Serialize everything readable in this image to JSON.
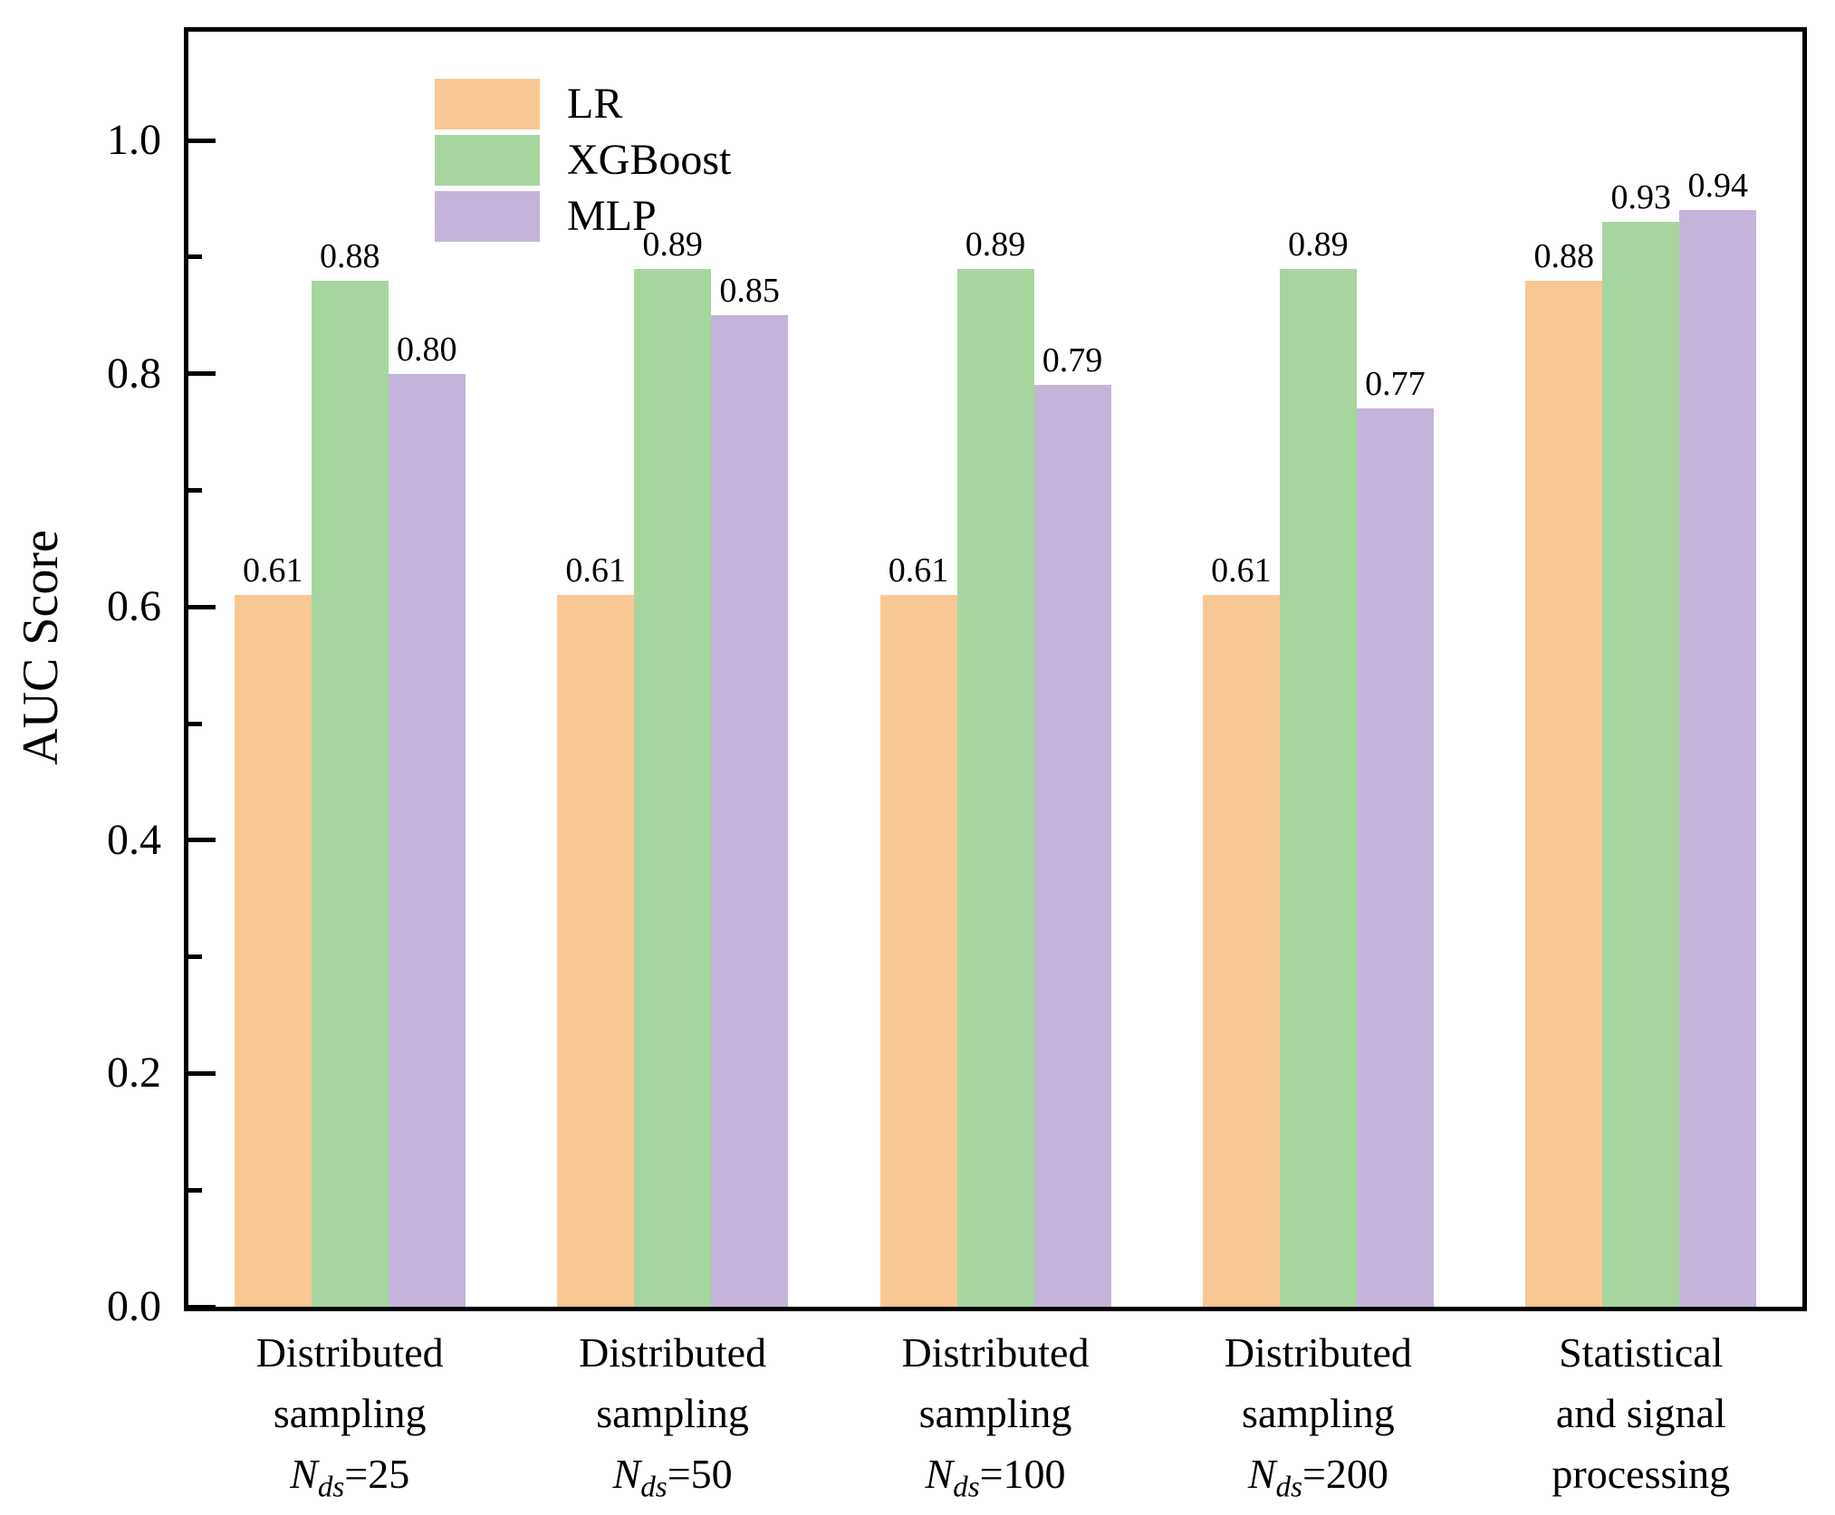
{
  "chart_data": {
    "type": "bar",
    "title": "",
    "ylabel": "AUC Score",
    "xlabel": "",
    "ylim": [
      0.0,
      1.1
    ],
    "yticks_major": [
      0.0,
      0.2,
      0.4,
      0.6,
      0.8,
      1.0
    ],
    "ytick_labels": [
      "0.0",
      "0.2",
      "0.4",
      "0.6",
      "0.8",
      "1.0"
    ],
    "yticks_minor": [
      0.1,
      0.3,
      0.5,
      0.7,
      0.9
    ],
    "grid": false,
    "value_labels_shown": true,
    "value_label_decimals": 2,
    "legend": {
      "position": "upper-left"
    },
    "categories": [
      {
        "name": "distributed-sampling-25",
        "lines": [
          [
            {
              "t": "Distributed"
            }
          ],
          [
            {
              "t": "sampling"
            }
          ],
          [
            {
              "t": "N",
              "italic": true
            },
            {
              "t": "ds",
              "italic": true,
              "sub": true
            },
            {
              "t": "=25"
            }
          ]
        ]
      },
      {
        "name": "distributed-sampling-50",
        "lines": [
          [
            {
              "t": "Distributed"
            }
          ],
          [
            {
              "t": "sampling"
            }
          ],
          [
            {
              "t": "N",
              "italic": true
            },
            {
              "t": "ds",
              "italic": true,
              "sub": true
            },
            {
              "t": "=50"
            }
          ]
        ]
      },
      {
        "name": "distributed-sampling-100",
        "lines": [
          [
            {
              "t": "Distributed"
            }
          ],
          [
            {
              "t": "sampling"
            }
          ],
          [
            {
              "t": "N",
              "italic": true
            },
            {
              "t": "ds",
              "italic": true,
              "sub": true
            },
            {
              "t": "=100"
            }
          ]
        ]
      },
      {
        "name": "distributed-sampling-200",
        "lines": [
          [
            {
              "t": "Distributed"
            }
          ],
          [
            {
              "t": "sampling"
            }
          ],
          [
            {
              "t": "N",
              "italic": true
            },
            {
              "t": "ds",
              "italic": true,
              "sub": true
            },
            {
              "t": "=200"
            }
          ]
        ]
      },
      {
        "name": "statistical-signal-processing",
        "lines": [
          [
            {
              "t": "Statistical"
            }
          ],
          [
            {
              "t": "and signal"
            }
          ],
          [
            {
              "t": "processing"
            }
          ]
        ]
      }
    ],
    "series": [
      {
        "name": "LR",
        "color": "#F9C794",
        "values": [
          0.61,
          0.61,
          0.61,
          0.61,
          0.88
        ]
      },
      {
        "name": "XGBoost",
        "color": "#A6D69E",
        "values": [
          0.88,
          0.89,
          0.89,
          0.89,
          0.93
        ]
      },
      {
        "name": "MLP",
        "color": "#C4B4DA",
        "values": [
          0.8,
          0.85,
          0.79,
          0.77,
          0.94
        ]
      }
    ],
    "colors": {
      "axis": "#000000",
      "text": "#000000",
      "background": "#ffffff"
    }
  }
}
